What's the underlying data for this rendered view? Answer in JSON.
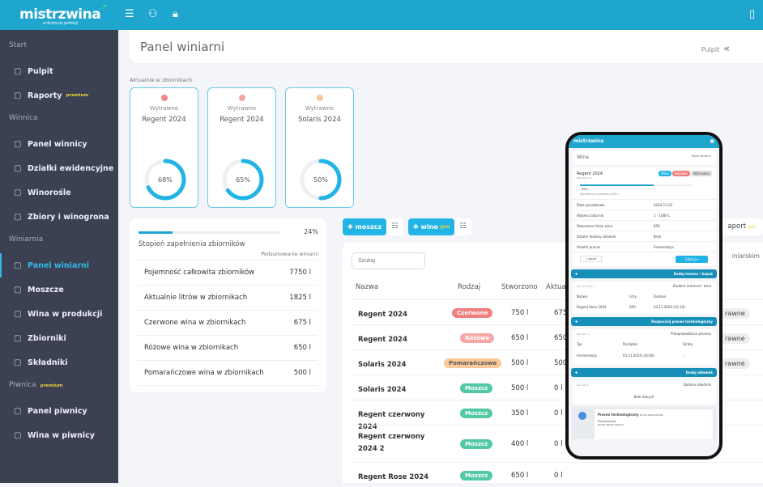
{
  "header": {
    "logo": "mistrzwina",
    "tagline": "w drodze do perfekcji"
  },
  "sidebar": {
    "sections": [
      {
        "label": "Start",
        "items": [
          {
            "label": "Pulpit",
            "icon": "grid-icon"
          },
          {
            "label": "Raporty",
            "badge": "premium",
            "icon": "reports-icon"
          }
        ]
      },
      {
        "label": "Winnica",
        "items": [
          {
            "label": "Panel winnicy",
            "icon": "signpost-icon"
          },
          {
            "label": "Działki ewidencyjne",
            "icon": "image-icon"
          },
          {
            "label": "Winorośle",
            "icon": "sliders-icon"
          },
          {
            "label": "Zbiory i winogrona",
            "icon": "basket-icon"
          }
        ]
      },
      {
        "label": "Winiarnia",
        "items": [
          {
            "label": "Panel winiarni",
            "icon": "panel-icon",
            "active": true
          },
          {
            "label": "Moszcze",
            "icon": "drop-icon"
          },
          {
            "label": "Wina w produkcji",
            "icon": "cycle-icon"
          },
          {
            "label": "Zbiorniki",
            "icon": "tank-icon"
          },
          {
            "label": "Składniki",
            "icon": "person-icon"
          }
        ]
      },
      {
        "label": "Piwnica",
        "badge": "premium",
        "items": [
          {
            "label": "Panel piwnicy",
            "icon": "login-icon"
          },
          {
            "label": "Wina w piwnicy",
            "icon": "link-icon"
          }
        ]
      }
    ]
  },
  "page": {
    "title": "Panel winiarni",
    "breadcrumb": "Pulpit"
  },
  "tanks_label": "Aktualnie w zbiornikach",
  "tanks": [
    {
      "status": "Wytrawne",
      "name": "Regent 2024",
      "percent": 68,
      "percent_label": "68%",
      "color": "#f08a8a"
    },
    {
      "status": "Wytrawne",
      "name": "Regent 2024",
      "percent": 65,
      "percent_label": "65%",
      "color": "#f6a5a5"
    },
    {
      "status": "Wytrawne",
      "name": "Solaris 2024",
      "percent": 50,
      "percent_label": "50%",
      "color": "#f8c89a"
    }
  ],
  "fill": {
    "percent": 24,
    "percent_label": "24%",
    "title": "Stopień zapełnienia zbiorników",
    "summary": "Podsumowanie winiarni",
    "rows": [
      [
        "Pojemność całkowita zbiorników",
        "7750 l"
      ],
      [
        "Aktualnie litrów w zbiornikach",
        "1825 l"
      ],
      [
        "Czerwone wina w zbiornikach",
        "675 l"
      ],
      [
        "Różowe wina w zbiornikach",
        "650 l"
      ],
      [
        "Pomarańczowe wina w zbiornikach",
        "500 l"
      ]
    ]
  },
  "actions": {
    "add_must": "moszcz",
    "add_wine": "wino",
    "pro": "pro",
    "report": "aport",
    "report_pro": "pro",
    "side_text": "iniarskim"
  },
  "table": {
    "search_placeholder": "Szukaj",
    "headers": [
      "Nazwa",
      "Rodzaj",
      "Stworzono",
      "Aktua"
    ],
    "rows": [
      {
        "name": "Regent 2024",
        "type": "Czerwone",
        "color": "#f07f7f",
        "created": "750 l",
        "current": "675",
        "extra": "rawne"
      },
      {
        "name": "Regent 2024",
        "type": "Różowe",
        "color": "#f6a8a8",
        "created": "650 l",
        "current": "650",
        "extra": "rawne"
      },
      {
        "name": "Solaris 2024",
        "type": "Pomarańczowe",
        "color": "#fbc99a",
        "created": "500 l",
        "current": "500",
        "extra": "rawne"
      },
      {
        "name": "Solaris 2024",
        "type": "Moszcz",
        "color": "#52c9a4",
        "created": "500 l",
        "current": "0 l"
      },
      {
        "name": "Regent czerwony 2024",
        "type": "Moszcz",
        "color": "#52c9a4",
        "created": "350 l",
        "current": "0 l"
      },
      {
        "name": "Regent czerwony 2024 2",
        "type": "Moszcz",
        "color": "#52c9a4",
        "created": "400 l",
        "current": "0 l"
      },
      {
        "name": "Regent Rose 2024",
        "type": "Moszcz",
        "color": "#52c9a4",
        "created": "650 l",
        "current": "0 l"
      }
    ]
  },
  "phone": {
    "logo": "mistrzwina",
    "title": "Wina",
    "crumb": "Panel winiarni",
    "wine": "Regent 2024",
    "sub": "Zbiornik nr 1",
    "badges": [
      "Wino",
      "Różowe",
      "Wytrawne"
    ],
    "progress": 65,
    "progress_label": "65%",
    "prod": "Aktualnie w produkcji 650 L",
    "rows": [
      [
        "Data początkowa",
        "2024-11-02"
      ],
      [
        "Wybierz zbiornik",
        "1 - 1000 L"
      ],
      [
        "Stworzono litrów wina",
        "650"
      ],
      [
        "Ostatni dodany składnik",
        "Brak"
      ],
      [
        "Ostatni proces",
        "Fermentacja"
      ]
    ],
    "report": "raport",
    "edit": "Edytuj",
    "bar1": "Dodaj moszcz / kupaż",
    "added_title": "Dodane moszcze i wina",
    "count1": "Łącznie: 650 L",
    "cols1": [
      "Nazwa",
      "Litry",
      "Dodano"
    ],
    "row1": [
      "Regent Rose 2024",
      "650",
      "03.11.2024 (15:10)"
    ],
    "bar2": "Rozpocznij proces technologiczny",
    "proc_title": "Przeprowadzone procesy",
    "count2": "Łącznie: 1",
    "cols2": [
      "Typ",
      "Początek",
      "Straty"
    ],
    "row2": [
      "Fermentacja",
      "03.11.2024 (16:00)",
      "-"
    ],
    "bar3": "Dodaj składnik",
    "ing_title": "Dodane składniki",
    "count3": "Łącznie: 0",
    "nodata": "Brak danych",
    "tl_title": "Proces technologiczny",
    "tl_date": "03.11.2024 (16:00)",
    "tl_type": "Fermentacja:",
    "tl_by": "Dodał: Marek Winiarz"
  }
}
